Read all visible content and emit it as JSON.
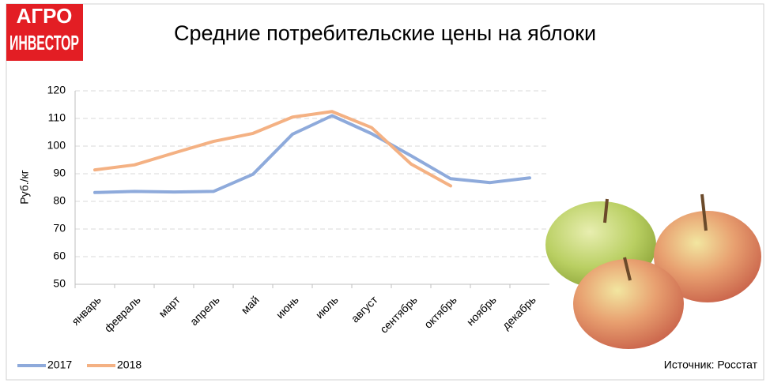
{
  "logo": [
    "АГРО",
    "ИНВЕСТОР"
  ],
  "source": "Источник: Росстат",
  "chart_data": {
    "type": "line",
    "title": "Средние потребительские цены на яблоки",
    "y_label": "Руб./кг",
    "categories": [
      "январь",
      "февраль",
      "март",
      "апрель",
      "май",
      "июнь",
      "июль",
      "август",
      "сентябрь",
      "октябрь",
      "ноябрь",
      "декабрь"
    ],
    "series": [
      {
        "name": "2017",
        "color": "#8eaadb",
        "values": [
          83.2,
          83.6,
          83.4,
          83.6,
          89.8,
          104.3,
          111,
          104.5,
          96.5,
          88.2,
          86.8,
          88.5
        ]
      },
      {
        "name": "2018",
        "color": "#f4b183",
        "values": [
          91.4,
          93.2,
          97.5,
          101.7,
          104.6,
          110.5,
          112.5,
          106.7,
          93.5,
          85.6,
          null,
          null
        ]
      }
    ],
    "ylim": [
      50,
      120
    ],
    "yticks": [
      50,
      60,
      70,
      80,
      90,
      100,
      110,
      120
    ],
    "grid": true,
    "legend": "bottom-left"
  }
}
